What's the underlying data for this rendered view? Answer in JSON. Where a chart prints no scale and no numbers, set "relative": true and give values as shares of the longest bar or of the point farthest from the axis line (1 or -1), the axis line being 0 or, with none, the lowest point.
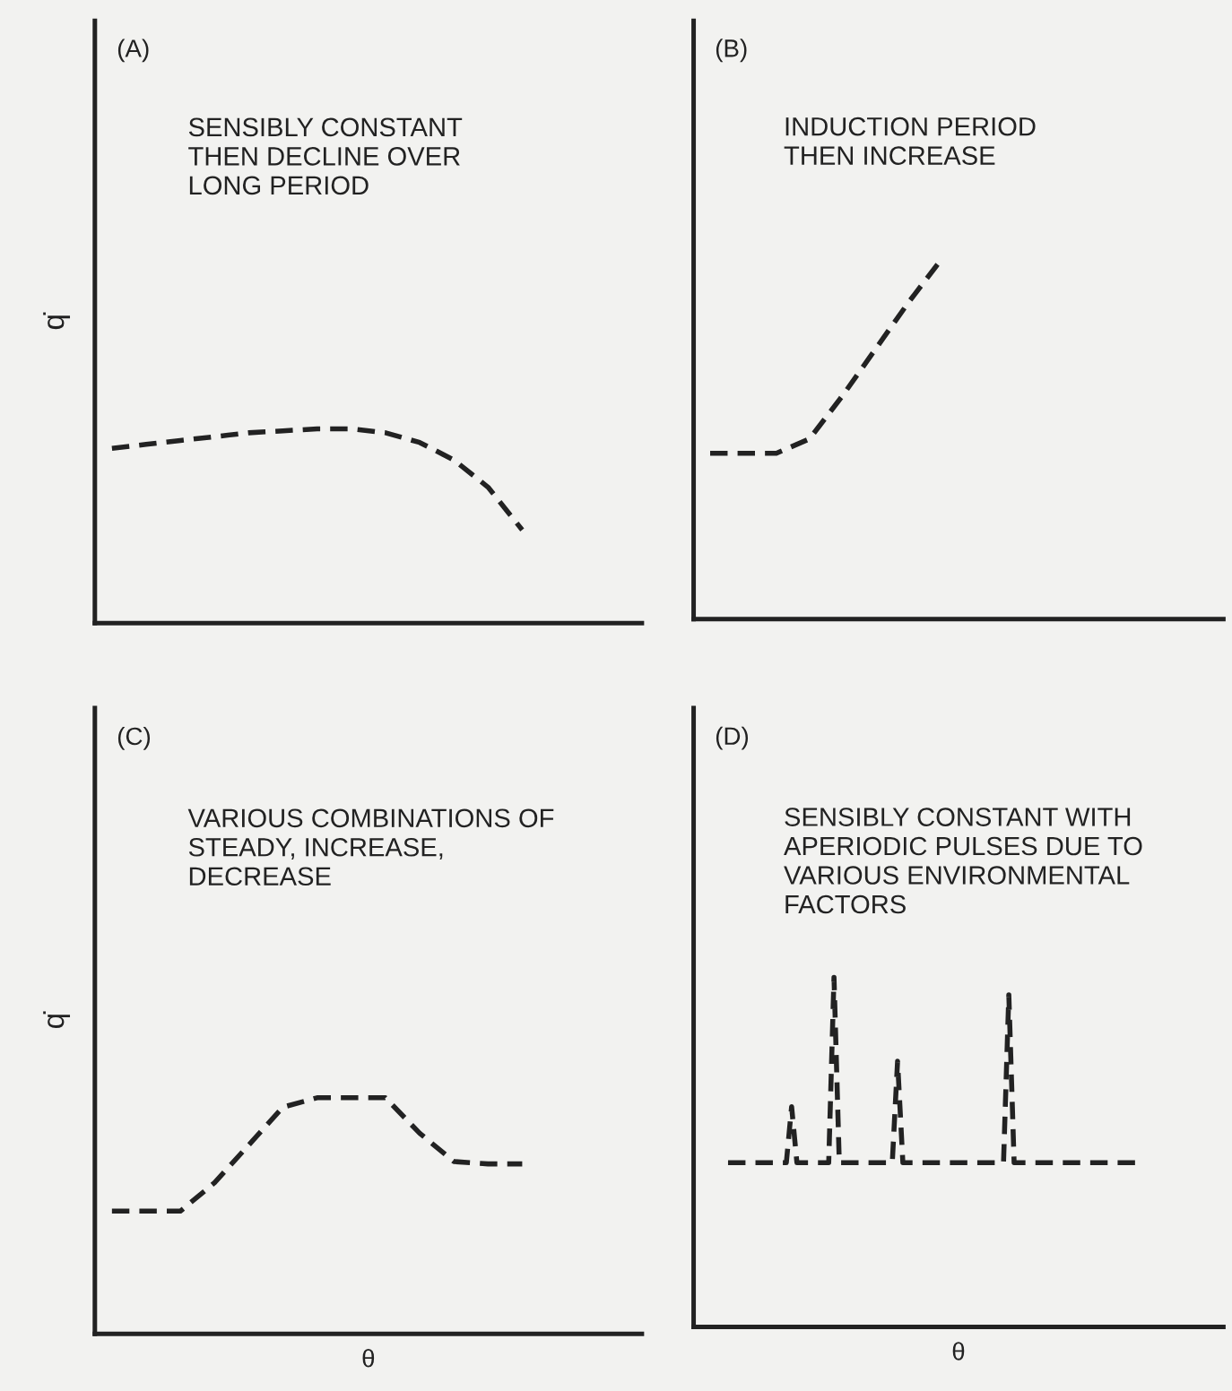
{
  "chart_data": [
    {
      "type": "line",
      "title": "(A)",
      "ylabel": "q̇",
      "relative": true,
      "legend": false,
      "line_style": "dashed",
      "marker": "none",
      "annotations": [
        "SENSIBLY CONSTANT\nTHEN DECLINE OVER\nLONG PERIOD"
      ],
      "categories": [
        null,
        null,
        null,
        null,
        null,
        null,
        null,
        null,
        null,
        null,
        null,
        null,
        null,
        null,
        null,
        null
      ],
      "series": [
        {
          "color": "#222222",
          "values": [
            0.9,
            0.92,
            0.94,
            0.96,
            0.98,
            0.99,
            1.0,
            1.0,
            0.98,
            0.93,
            0.84,
            0.7,
            0.48,
            null,
            null,
            null
          ]
        }
      ]
    },
    {
      "type": "line",
      "title": "(B)",
      "relative": true,
      "legend": false,
      "line_style": "dashed",
      "marker": "none",
      "annotations": [
        "INDUCTION PERIOD\nTHEN INCREASE"
      ],
      "categories": [
        null,
        null,
        null,
        null,
        null,
        null,
        null,
        null,
        null,
        null,
        null,
        null,
        null,
        null,
        null,
        null
      ],
      "series": [
        {
          "color": "#222222",
          "values": [
            0.46,
            0.46,
            0.46,
            0.5,
            0.62,
            0.75,
            0.88,
            1.0,
            null,
            null,
            null,
            null,
            null,
            null,
            null,
            null
          ]
        }
      ]
    },
    {
      "type": "line",
      "title": "(C)",
      "ylabel": "q̇",
      "xlabel": "θ",
      "relative": true,
      "legend": false,
      "line_style": "dashed",
      "marker": "none",
      "annotations": [
        "VARIOUS COMBINATIONS OF\nSTEADY, INCREASE,\nDECREASE"
      ],
      "categories": [
        null,
        null,
        null,
        null,
        null,
        null,
        null,
        null,
        null,
        null,
        null,
        null,
        null,
        null,
        null,
        null
      ],
      "series": [
        {
          "color": "#222222",
          "values": [
            0.52,
            0.52,
            0.52,
            0.64,
            0.8,
            0.96,
            1.0,
            1.0,
            1.0,
            0.85,
            0.73,
            0.72,
            0.72,
            null,
            null,
            null
          ]
        }
      ]
    },
    {
      "type": "line",
      "title": "(D)",
      "xlabel": "θ",
      "relative": true,
      "legend": false,
      "line_style": "dashed",
      "marker": "none",
      "annotations": [
        "SENSIBLY CONSTANT WITH\nAPERIODIC PULSES DUE TO\nVARIOUS ENVIRONMENTAL\nFACTORS"
      ],
      "categories": [
        null,
        null,
        null,
        null,
        null,
        null,
        null,
        null,
        null,
        null,
        null,
        null,
        null,
        null,
        null,
        null,
        null,
        null,
        null,
        null,
        null,
        null,
        null,
        null,
        null,
        null,
        null,
        null,
        null,
        null,
        null,
        null,
        null,
        null,
        null,
        null,
        null,
        null,
        null,
        null,
        null,
        null,
        null,
        null,
        null,
        null,
        null,
        null,
        null,
        null,
        null,
        null,
        null,
        null,
        null,
        null,
        null,
        null,
        null,
        null,
        null,
        null,
        null,
        null,
        null,
        null,
        null,
        null,
        null,
        null,
        null,
        null,
        null,
        null,
        null,
        null,
        null,
        null,
        null,
        null,
        null,
        null,
        null,
        null,
        null,
        null,
        null,
        null,
        null,
        null,
        null,
        null,
        null,
        null,
        null,
        null,
        null,
        null,
        null,
        null
      ],
      "series": [
        {
          "color": "#222222",
          "values": [
            null,
            null,
            null,
            null,
            null,
            null,
            0.47,
            0.47,
            0.47,
            0.47,
            0.47,
            0.47,
            0.47,
            0.47,
            0.47,
            0.47,
            0.47,
            0.47,
            0.63,
            0.47,
            0.47,
            0.47,
            0.47,
            0.47,
            0.47,
            0.47,
            1.0,
            0.47,
            0.47,
            0.47,
            0.47,
            0.47,
            0.47,
            0.47,
            0.47,
            0.47,
            0.47,
            0.47,
            0.76,
            0.47,
            0.47,
            0.47,
            0.47,
            0.47,
            0.47,
            0.47,
            0.47,
            0.47,
            0.47,
            0.47,
            0.47,
            0.47,
            0.47,
            0.47,
            0.47,
            0.47,
            0.47,
            0.47,
            0.47,
            0.95,
            0.47,
            0.47,
            0.47,
            0.47,
            0.47,
            0.47,
            0.47,
            0.47,
            0.47,
            0.47,
            0.47,
            0.47,
            0.47,
            0.47,
            0.47,
            0.47,
            0.47,
            0.47,
            0.47,
            0.47,
            0.47,
            0.47,
            0.47,
            0.47,
            null,
            null,
            null,
            null,
            null,
            null,
            null,
            null,
            null,
            null,
            null,
            null,
            null,
            null,
            null,
            null
          ]
        }
      ]
    }
  ]
}
